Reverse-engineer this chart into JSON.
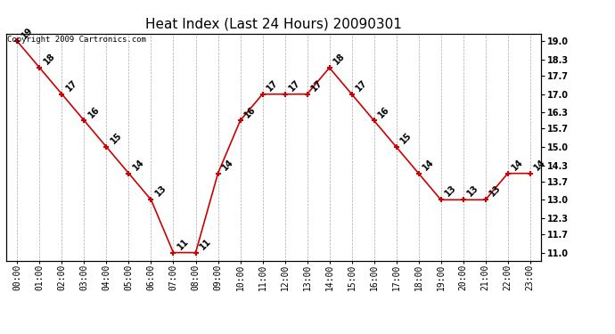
{
  "title": "Heat Index (Last 24 Hours) 20090301",
  "copyright": "Copyright 2009 Cartronics.com",
  "x_labels": [
    "00:00",
    "01:00",
    "02:00",
    "03:00",
    "04:00",
    "05:00",
    "06:00",
    "07:00",
    "08:00",
    "09:00",
    "10:00",
    "11:00",
    "12:00",
    "13:00",
    "14:00",
    "15:00",
    "16:00",
    "17:00",
    "18:00",
    "19:00",
    "20:00",
    "21:00",
    "22:00",
    "23:00"
  ],
  "y_values": [
    19,
    18,
    17,
    16,
    15,
    14,
    13,
    11,
    11,
    14,
    16,
    17,
    17,
    17,
    18,
    17,
    16,
    15,
    14,
    13,
    13,
    13,
    14,
    14
  ],
  "y_labels": [
    "11.0",
    "11.7",
    "12.3",
    "13.0",
    "13.7",
    "14.3",
    "15.0",
    "15.7",
    "16.3",
    "17.0",
    "17.7",
    "18.3",
    "19.0"
  ],
  "y_ticks": [
    11.0,
    11.7,
    12.3,
    13.0,
    13.7,
    14.3,
    15.0,
    15.7,
    16.3,
    17.0,
    17.7,
    18.3,
    19.0
  ],
  "ylim": [
    10.7,
    19.3
  ],
  "line_color": "#cc0000",
  "marker_color": "#cc0000",
  "bg_color": "#ffffff",
  "plot_bg_color": "#ffffff",
  "grid_color": "#aaaaaa",
  "title_fontsize": 11,
  "label_fontsize": 7,
  "tick_fontsize": 7,
  "copyright_fontsize": 6.5
}
